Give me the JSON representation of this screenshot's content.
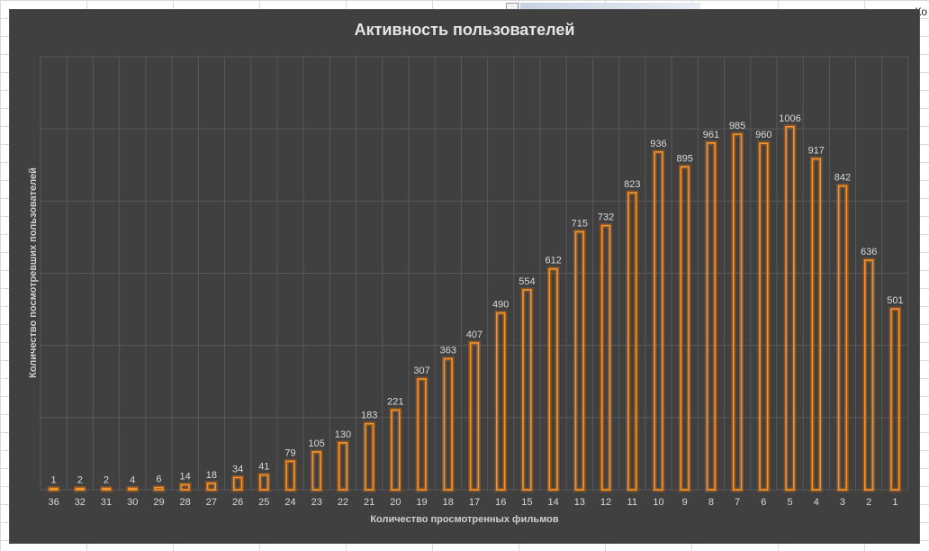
{
  "sheet": {
    "corner_text": "Ко"
  },
  "chart_data": {
    "type": "bar",
    "title": "Активность пользователей",
    "xlabel": "Количество просмотренных фильмов",
    "ylabel": "Количество посмотревших пользователей",
    "categories": [
      "36",
      "32",
      "31",
      "30",
      "29",
      "28",
      "27",
      "26",
      "25",
      "24",
      "23",
      "22",
      "21",
      "20",
      "19",
      "18",
      "17",
      "16",
      "15",
      "14",
      "13",
      "12",
      "11",
      "10",
      "9",
      "8",
      "7",
      "6",
      "5",
      "4",
      "3",
      "2",
      "1"
    ],
    "values": [
      1,
      2,
      2,
      4,
      6,
      14,
      18,
      34,
      41,
      79,
      105,
      130,
      183,
      221,
      307,
      363,
      407,
      490,
      554,
      612,
      715,
      732,
      823,
      936,
      895,
      961,
      985,
      960,
      1006,
      917,
      842,
      636,
      501
    ],
    "ylim": [
      0,
      1200
    ],
    "grid": true,
    "legend": "none",
    "colors": {
      "bar": "#f79428",
      "background": "#404040"
    }
  }
}
